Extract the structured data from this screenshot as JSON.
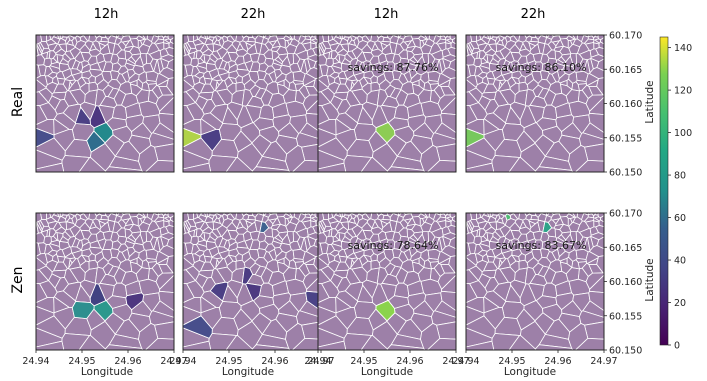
{
  "chart_data": {
    "type": "heatmap",
    "description_free": true,
    "column_titles": [
      "12h",
      "22h",
      "12h",
      "22h"
    ],
    "row_labels": [
      "Real",
      "Zen"
    ],
    "xlabel": "Longitude",
    "ylabel": "Latitude",
    "x_ticks": [
      "24.94",
      "24.95",
      "24.96",
      "24.97"
    ],
    "x_tick_values": [
      24.94,
      24.95,
      24.96,
      24.97
    ],
    "xlim": [
      24.94,
      24.97
    ],
    "y_ticks": [
      "60.150",
      "60.155",
      "60.160",
      "60.165",
      "60.170"
    ],
    "y_tick_values": [
      60.15,
      60.155,
      60.16,
      60.165,
      60.17
    ],
    "ylim": [
      60.15,
      60.17
    ],
    "colorbar": {
      "cmap": "viridis",
      "range": [
        0,
        145
      ],
      "ticks": [
        "0",
        "20",
        "40",
        "60",
        "80",
        "100",
        "120",
        "140"
      ],
      "tick_values": [
        0,
        20,
        40,
        60,
        80,
        100,
        120,
        140
      ]
    },
    "panels": [
      {
        "row": "Real",
        "col": "12h",
        "savings": "",
        "hotspots": [
          {
            "lon": 24.954,
            "lat": 60.1565,
            "value": 68
          },
          {
            "lon": 24.9555,
            "lat": 60.1555,
            "value": 70
          },
          {
            "lon": 24.9525,
            "lat": 60.1555,
            "value": 62
          },
          {
            "lon": 24.9545,
            "lat": 60.1545,
            "value": 60
          },
          {
            "lon": 24.9505,
            "lat": 60.1575,
            "value": 30
          },
          {
            "lon": 24.9535,
            "lat": 60.1585,
            "value": 25
          },
          {
            "lon": 24.9425,
            "lat": 60.155,
            "value": 40
          }
        ]
      },
      {
        "row": "Real",
        "col": "22h",
        "savings": "",
        "hotspots": [
          {
            "lon": 24.9415,
            "lat": 60.1558,
            "value": 135
          },
          {
            "lon": 24.9475,
            "lat": 60.1545,
            "value": 30
          }
        ]
      },
      {
        "row": "Real",
        "col": "12h",
        "savings": "savings: 87.76%",
        "hotspots": [
          {
            "lon": 24.9555,
            "lat": 60.1558,
            "value": 130
          }
        ]
      },
      {
        "row": "Real",
        "col": "22h",
        "savings": "savings: 86.10%",
        "hotspots": [
          {
            "lon": 24.9415,
            "lat": 60.1555,
            "value": 125
          }
        ]
      },
      {
        "row": "Zen",
        "col": "12h",
        "savings": "",
        "hotspots": [
          {
            "lon": 24.954,
            "lat": 60.157,
            "value": 78
          },
          {
            "lon": 24.9555,
            "lat": 60.1562,
            "value": 80
          },
          {
            "lon": 24.9525,
            "lat": 60.1562,
            "value": 72
          },
          {
            "lon": 24.9545,
            "lat": 60.1578,
            "value": 30
          },
          {
            "lon": 24.961,
            "lat": 60.1575,
            "value": 25
          }
        ]
      },
      {
        "row": "Zen",
        "col": "22h",
        "savings": "",
        "hotspots": [
          {
            "lon": 24.9485,
            "lat": 60.1585,
            "value": 30
          },
          {
            "lon": 24.9535,
            "lat": 60.16,
            "value": 28
          },
          {
            "lon": 24.943,
            "lat": 60.1535,
            "value": 40
          },
          {
            "lon": 24.9555,
            "lat": 60.1582,
            "value": 26
          },
          {
            "lon": 24.967,
            "lat": 60.1585,
            "value": 32
          },
          {
            "lon": 24.9572,
            "lat": 60.1685,
            "value": 55
          }
        ]
      },
      {
        "row": "Zen",
        "col": "12h",
        "savings": "savings: 78.64%",
        "hotspots": [
          {
            "lon": 24.9545,
            "lat": 60.156,
            "value": 128
          },
          {
            "lon": 24.9565,
            "lat": 60.1555,
            "value": 130
          }
        ]
      },
      {
        "row": "Zen",
        "col": "22h",
        "savings": "savings: 83.67%",
        "hotspots": [
          {
            "lon": 24.9495,
            "lat": 60.1695,
            "value": 110
          },
          {
            "lon": 24.9575,
            "lat": 60.1683,
            "value": 90
          }
        ]
      }
    ]
  }
}
